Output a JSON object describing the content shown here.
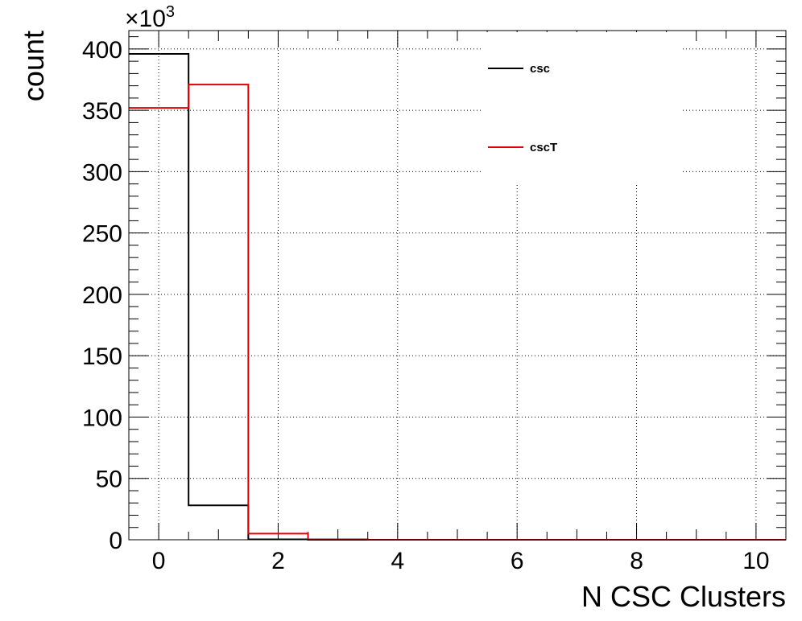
{
  "chart_data": {
    "type": "step",
    "xlabel": "N CSC Clusters",
    "ylabel": "count",
    "y_multiplier": "×10",
    "y_multiplier_exp": "3",
    "xlim": [
      -0.5,
      10.5
    ],
    "ylim": [
      0,
      415
    ],
    "grid": true,
    "legend_placement": "top-right",
    "x_ticks": [
      0,
      2,
      4,
      6,
      8,
      10
    ],
    "x_tick_labels": [
      "0",
      "2",
      "4",
      "6",
      "8",
      "10"
    ],
    "y_ticks": [
      0,
      50,
      100,
      150,
      200,
      250,
      300,
      350,
      400
    ],
    "y_tick_labels": [
      "0",
      "50",
      "100",
      "150",
      "200",
      "250",
      "300",
      "350",
      "400"
    ],
    "series": [
      {
        "name": "csc",
        "color": "#000000",
        "bin_edges": [
          -0.5,
          0.5,
          1.5,
          2.5,
          3.5,
          4.5,
          5.5,
          6.5,
          7.5,
          8.5,
          9.5,
          10.5
        ],
        "values": [
          396,
          28,
          0.3,
          0,
          0,
          0,
          0,
          0,
          0,
          0,
          0
        ]
      },
      {
        "name": "cscT",
        "color": "#e00000",
        "bin_edges": [
          -0.5,
          0.5,
          1.5,
          2.5,
          3.5,
          4.5,
          5.5,
          6.5,
          7.5,
          8.5,
          9.5,
          10.5
        ],
        "values": [
          352,
          371,
          5,
          0.3,
          0,
          0,
          0,
          0,
          0,
          0,
          0
        ]
      }
    ]
  }
}
